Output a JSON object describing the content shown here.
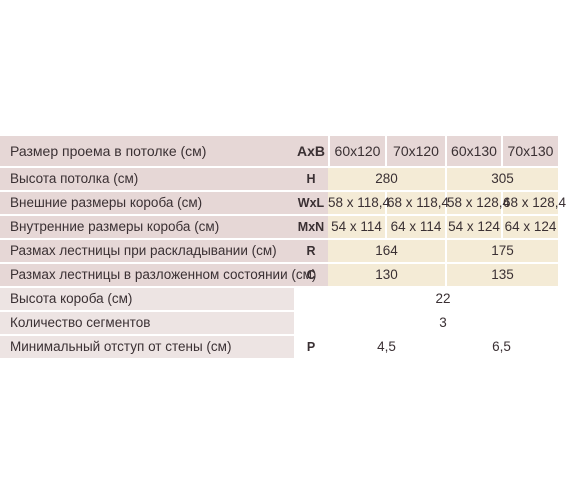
{
  "sizes": [
    "60x120",
    "70x120",
    "60x130",
    "70x130"
  ],
  "rows": [
    {
      "label": "Размер проема в потолке (см)",
      "code": "AxB"
    },
    {
      "label": "Высота потолка (см)",
      "code": "H",
      "values": [
        "280",
        "305"
      ]
    },
    {
      "label": "Внешние размеры короба (см)",
      "code": "WxL",
      "values": [
        "58 x 118,4",
        "68 x 118,4",
        "58 x 128,4",
        "68 x 128,4"
      ]
    },
    {
      "label": "Внутренние размеры короба (см)",
      "code": "MxN",
      "values": [
        "54 x 114",
        "64 x 114",
        "54 x 124",
        "64 x 124"
      ]
    },
    {
      "label": "Размах лестницы при раскладывании (см)",
      "code": "R",
      "values": [
        "164",
        "175"
      ]
    },
    {
      "label": "Размах лестницы в разложенном состоянии (см)",
      "code": "C",
      "values": [
        "130",
        "135"
      ]
    },
    {
      "label": "Высота короба (см)",
      "code": "",
      "values": [
        "22"
      ]
    },
    {
      "label": "Количество сегментов",
      "code": "",
      "values": [
        "3"
      ]
    },
    {
      "label": "Минимальный отступ от стены (см)",
      "code": "P",
      "values": [
        "4,5",
        "6,5"
      ]
    }
  ]
}
